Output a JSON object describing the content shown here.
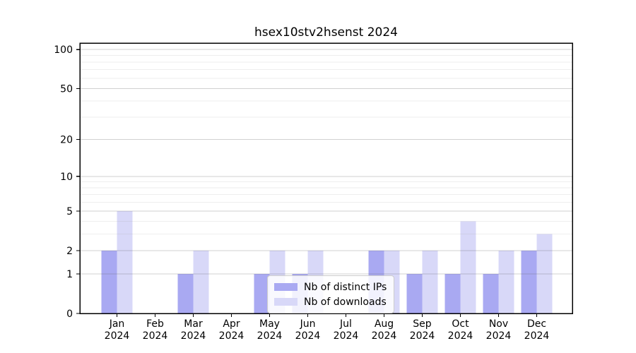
{
  "title": "hsex10stv2hsenst 2024",
  "legend": {
    "entries": [
      {
        "label": "Nb of distinct IPs",
        "color": "#a9a9f2"
      },
      {
        "label": "Nb of downloads",
        "color": "#d8d8f8"
      }
    ]
  },
  "colors": {
    "bar_ips": "#a9a9f2",
    "bar_downloads": "#d8d8f8",
    "major_grid": "rgba(90,90,90,0.28)",
    "minor_grid": "rgba(160,160,160,0.18)",
    "axis": "#000000",
    "legend_border": "#cccccc"
  },
  "chart_data": {
    "type": "bar",
    "title": "hsex10stv2hsenst 2024",
    "categories": [
      "Jan 2024",
      "Feb 2024",
      "Mar 2024",
      "Apr 2024",
      "May 2024",
      "Jun 2024",
      "Jul 2024",
      "Aug 2024",
      "Sep 2024",
      "Oct 2024",
      "Nov 2024",
      "Dec 2024"
    ],
    "series": [
      {
        "name": "Nb of distinct IPs",
        "color": "#a9a9f2",
        "values": [
          2,
          0,
          1,
          0,
          1,
          1,
          0,
          2,
          1,
          1,
          1,
          2
        ]
      },
      {
        "name": "Nb of downloads",
        "color": "#d8d8f8",
        "values": [
          5,
          0,
          2,
          0,
          2,
          2,
          0,
          2,
          2,
          4,
          2,
          3
        ]
      }
    ],
    "xlabel": "",
    "ylabel": "",
    "yscale": "log1p",
    "ylim": [
      0,
      112
    ],
    "y_major_ticks": [
      0,
      1,
      2,
      5,
      10,
      20,
      50,
      100
    ],
    "y_minor_gridlines": [
      3,
      4,
      6,
      7,
      8,
      9,
      30,
      40,
      60,
      70,
      80,
      90
    ],
    "grid": true,
    "legend_position": "lower center"
  }
}
